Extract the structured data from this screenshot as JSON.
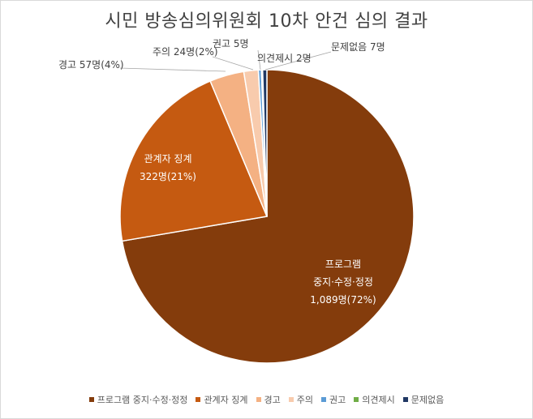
{
  "chart_data": {
    "type": "pie",
    "title": "시민 방송심의위원회 10차 안건 심의 결과",
    "series": [
      {
        "name": "프로그램 중지·수정·정정",
        "value": 1089,
        "percent": 72,
        "color": "#843C0C",
        "label_lines": [
          "프로그램",
          "중지·수정·정정",
          "1,089명(72%)"
        ]
      },
      {
        "name": "관계자 징계",
        "value": 322,
        "percent": 21,
        "color": "#C55A11",
        "label_lines": [
          "관계자 징계",
          "322명(21%)"
        ]
      },
      {
        "name": "경고",
        "value": 57,
        "percent": 4,
        "color": "#F4B183",
        "label_lines": [
          "경고 57명(4%)"
        ]
      },
      {
        "name": "주의",
        "value": 24,
        "percent": 2,
        "color": "#F8CBAD",
        "label_lines": [
          "주의 24명(2%)"
        ]
      },
      {
        "name": "권고",
        "value": 5,
        "color": "#5B9BD5",
        "label_lines": [
          "권고 5명"
        ]
      },
      {
        "name": "의견제시",
        "value": 2,
        "color": "#70AD47",
        "label_lines": [
          "의견제시 2명"
        ]
      },
      {
        "name": "문제없음",
        "value": 7,
        "color": "#203864",
        "label_lines": [
          "문제없음 7명"
        ]
      }
    ],
    "legend_position": "bottom"
  }
}
